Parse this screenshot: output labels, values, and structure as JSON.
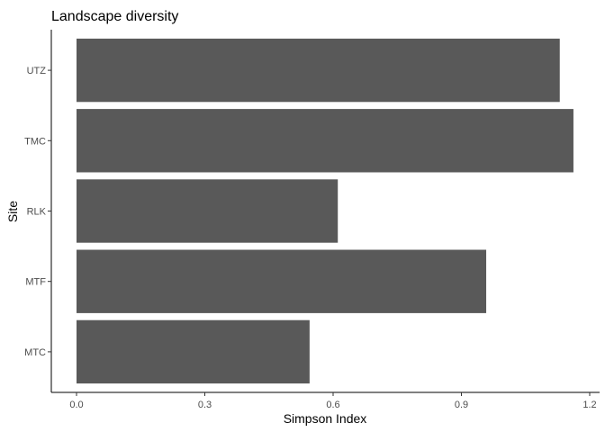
{
  "chart_data": {
    "type": "bar",
    "orientation": "horizontal",
    "title": "Landscape diversity",
    "xlabel": "Simpson Index",
    "ylabel": "Site",
    "categories": [
      "MTC",
      "MTF",
      "RLK",
      "TMC",
      "UTZ"
    ],
    "values": [
      0.545,
      0.958,
      0.611,
      1.162,
      1.13
    ],
    "xlim": [
      0,
      1.2
    ],
    "x_ticks": [
      0.0,
      0.3,
      0.6,
      0.9,
      1.2
    ],
    "x_tick_labels": [
      "0.0",
      "0.3",
      "0.6",
      "0.9",
      "1.2"
    ],
    "bar_color": "#595959",
    "grid": false,
    "legend": "none"
  }
}
